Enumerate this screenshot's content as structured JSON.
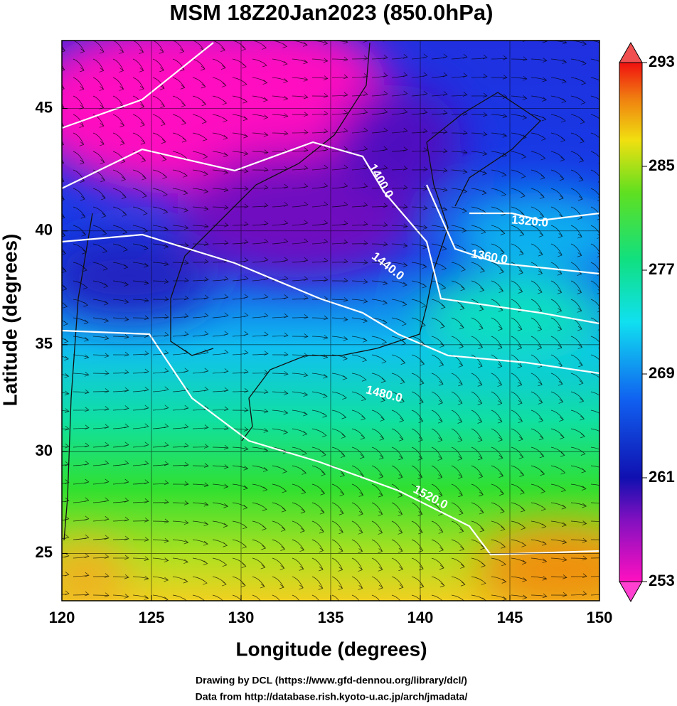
{
  "title": "MSM 18Z20Jan2023 (850.0hPa)",
  "x_axis": {
    "label": "Longitude (degrees)",
    "lim": [
      120,
      150
    ],
    "ticks": [
      120,
      125,
      130,
      135,
      140,
      145,
      150
    ]
  },
  "y_axis": {
    "label": "Latitude  (degrees)",
    "lim": [
      22.6,
      47.6
    ],
    "ticks": [
      25,
      30,
      35,
      40,
      45
    ]
  },
  "colorbar": {
    "lim": [
      253,
      293
    ],
    "ticks": [
      253,
      261,
      269,
      277,
      285,
      293
    ]
  },
  "contour_labels": [
    "1320.0",
    "1360.0",
    "1400.0",
    "1440.0",
    "1480.0",
    "1520.0"
  ],
  "footer": [
    "Drawing by DCL (https://www.gfd-dennou.org/library/dcl/)",
    "Data from http://database.rish.kyoto-u.ac.jp/arch/jmadata/"
  ]
}
